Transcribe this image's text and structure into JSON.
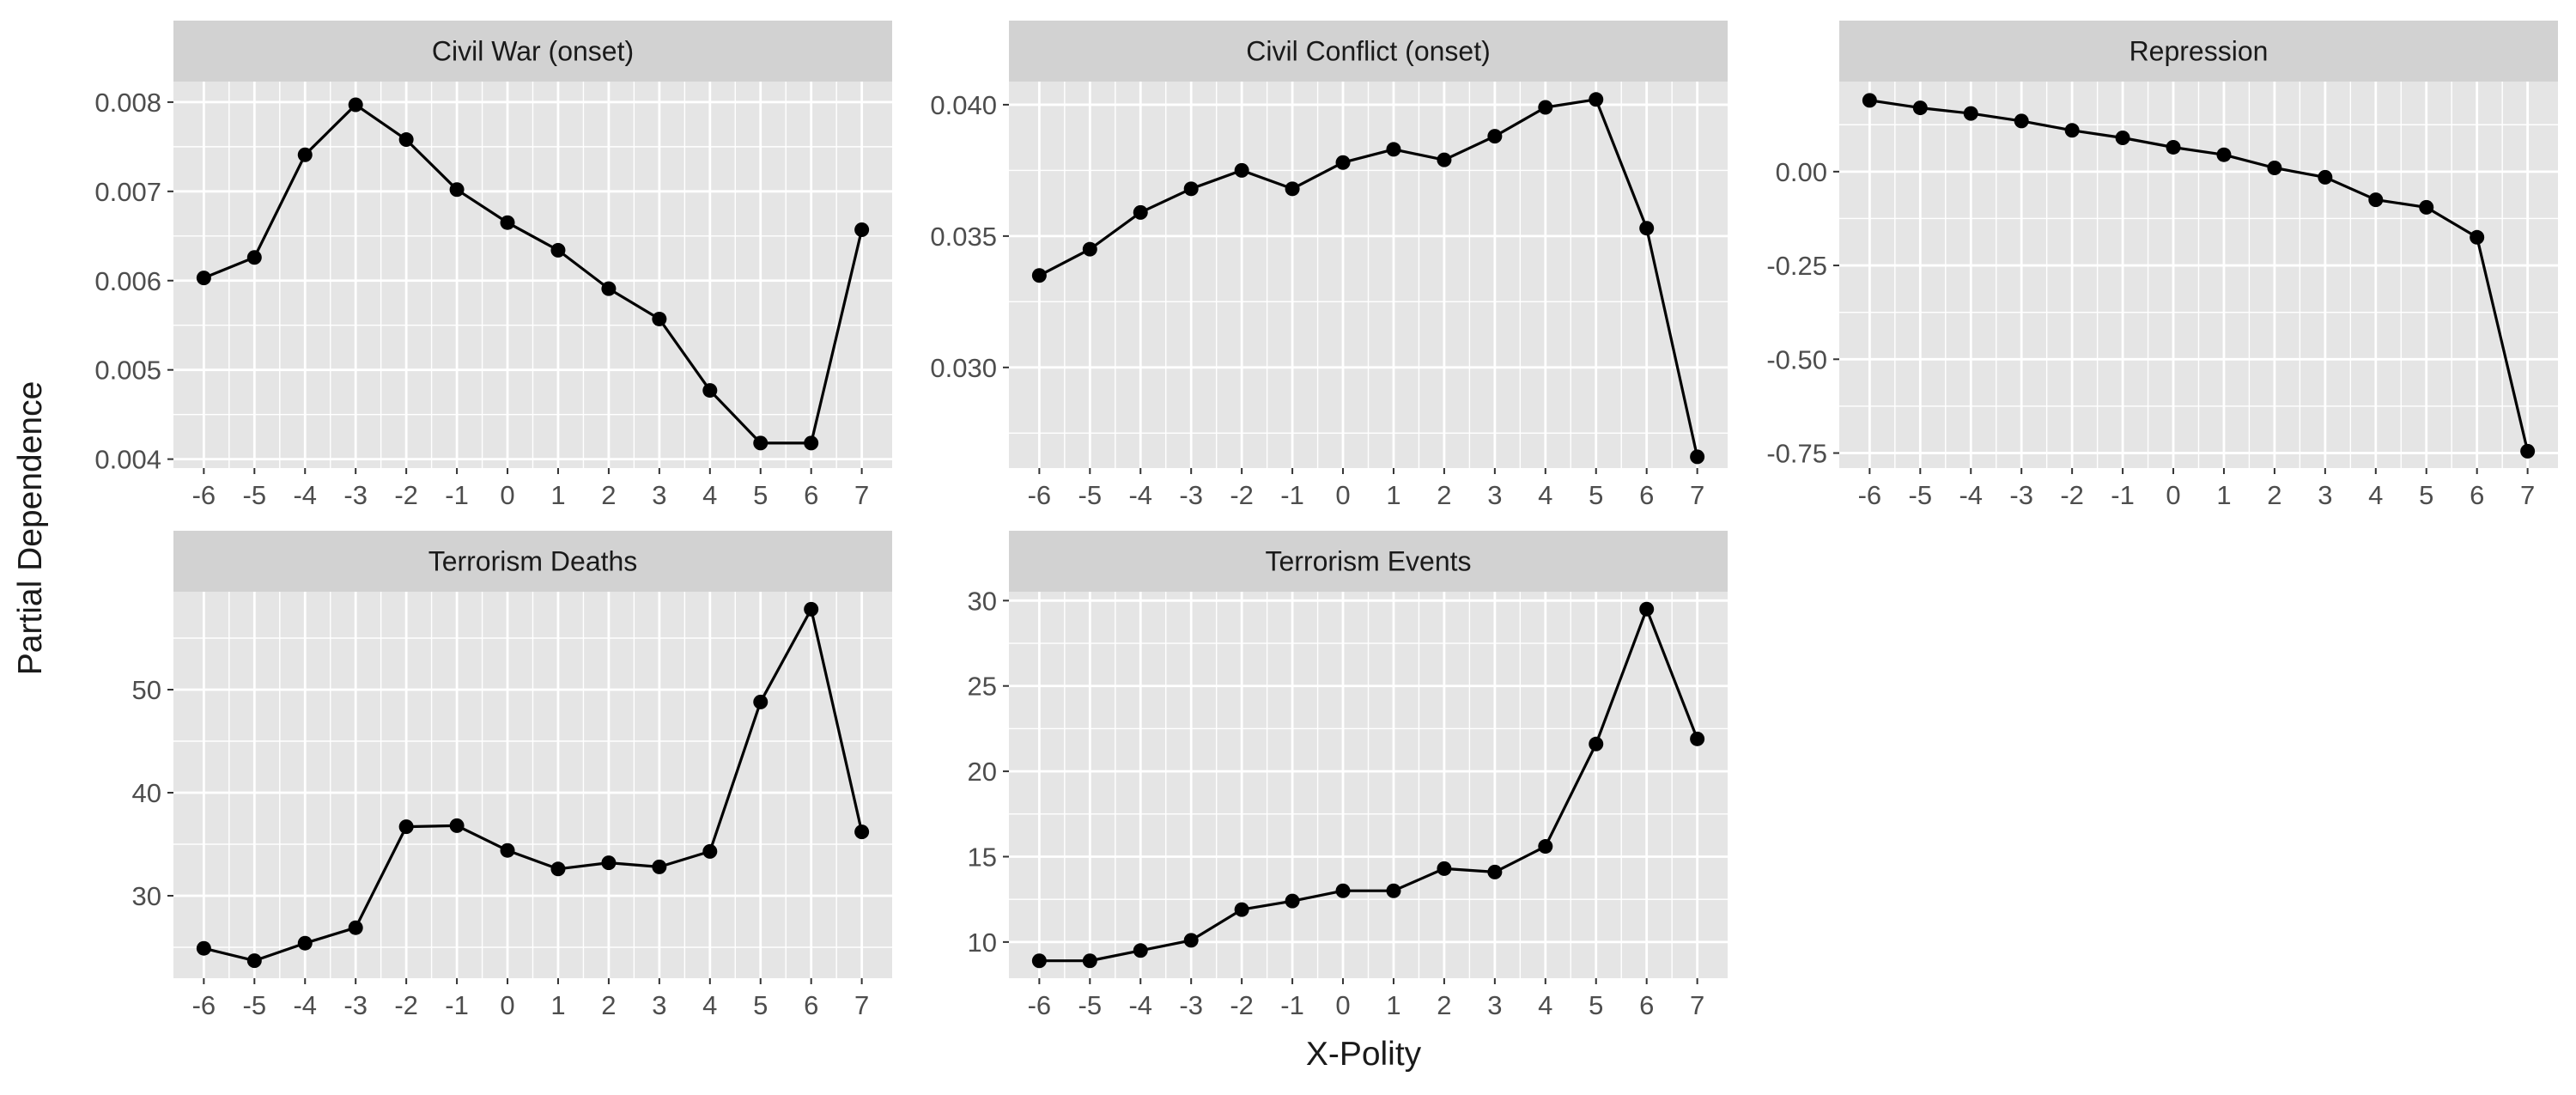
{
  "figure": {
    "ylabel": "Partial Dependence",
    "xlabel": "X-Polity"
  },
  "colors": {
    "panel_bg": "#E5E5E5",
    "strip_bg": "#D2D2D2",
    "grid": "#FFFFFF",
    "line": "#000000",
    "point": "#000000",
    "axis_text": "#4D4D4D",
    "title_text": "#1A1A1A"
  },
  "chart_data": [
    {
      "type": "line",
      "title": "Civil War (onset)",
      "x": [
        -6,
        -5,
        -4,
        -3,
        -2,
        -1,
        0,
        1,
        2,
        3,
        4,
        5,
        6,
        7
      ],
      "x_tick_labels": [
        "-6",
        "-5",
        "-4",
        "-3",
        "-2",
        "-1",
        "0",
        "1",
        "2",
        "3",
        "4",
        "5",
        "6",
        "7"
      ],
      "y": [
        0.00603,
        0.00626,
        0.00741,
        0.00797,
        0.00758,
        0.00702,
        0.00665,
        0.00634,
        0.00591,
        0.00557,
        0.00477,
        0.00418,
        0.00418,
        0.00657
      ],
      "ylim": [
        0.0039,
        0.00823
      ],
      "y_ticks": [
        0.004,
        0.005,
        0.006,
        0.007,
        0.008
      ],
      "y_tick_labels": [
        "0.004",
        "0.005",
        "0.006",
        "0.007",
        "0.008"
      ],
      "grid": true
    },
    {
      "type": "line",
      "title": "Civil Conflict (onset)",
      "x": [
        -6,
        -5,
        -4,
        -3,
        -2,
        -1,
        0,
        1,
        2,
        3,
        4,
        5,
        6,
        7
      ],
      "x_tick_labels": [
        "-6",
        "-5",
        "-4",
        "-3",
        "-2",
        "-1",
        "0",
        "1",
        "2",
        "3",
        "4",
        "5",
        "6",
        "7"
      ],
      "y": [
        0.0335,
        0.0345,
        0.0359,
        0.0368,
        0.0375,
        0.0368,
        0.0378,
        0.0383,
        0.0379,
        0.0388,
        0.0399,
        0.0402,
        0.0353,
        0.0266
      ],
      "ylim": [
        0.02617,
        0.04088
      ],
      "y_ticks": [
        0.03,
        0.035,
        0.04
      ],
      "y_tick_labels": [
        "0.030",
        "0.035",
        "0.040"
      ],
      "grid": true
    },
    {
      "type": "line",
      "title": "Repression",
      "x": [
        -6,
        -5,
        -4,
        -3,
        -2,
        -1,
        0,
        1,
        2,
        3,
        4,
        5,
        6,
        7
      ],
      "x_tick_labels": [
        "-6",
        "-5",
        "-4",
        "-3",
        "-2",
        "-1",
        "0",
        "1",
        "2",
        "3",
        "4",
        "5",
        "6",
        "7"
      ],
      "y": [
        0.19,
        0.17,
        0.155,
        0.135,
        0.11,
        0.09,
        0.065,
        0.045,
        0.01,
        -0.015,
        -0.075,
        -0.095,
        -0.175,
        -0.745
      ],
      "ylim": [
        -0.79,
        0.24
      ],
      "y_ticks": [
        -0.75,
        -0.5,
        -0.25,
        0.0
      ],
      "y_tick_labels": [
        "-0.75",
        "-0.50",
        "-0.25",
        "0.00"
      ],
      "grid": true
    },
    {
      "type": "line",
      "title": "Terrorism Deaths",
      "x": [
        -6,
        -5,
        -4,
        -3,
        -2,
        -1,
        0,
        1,
        2,
        3,
        4,
        5,
        6,
        7
      ],
      "x_tick_labels": [
        "-6",
        "-5",
        "-4",
        "-3",
        "-2",
        "-1",
        "0",
        "1",
        "2",
        "3",
        "4",
        "5",
        "6",
        "7"
      ],
      "y": [
        24.9,
        23.7,
        25.4,
        26.9,
        36.7,
        36.8,
        34.4,
        32.6,
        33.2,
        32.8,
        34.3,
        48.8,
        57.8,
        36.2
      ],
      "ylim": [
        22.0,
        59.5
      ],
      "y_ticks": [
        30,
        40,
        50
      ],
      "y_tick_labels": [
        "30",
        "40",
        "50"
      ],
      "grid": true
    },
    {
      "type": "line",
      "title": "Terrorism Events",
      "x": [
        -6,
        -5,
        -4,
        -3,
        -2,
        -1,
        0,
        1,
        2,
        3,
        4,
        5,
        6,
        7
      ],
      "x_tick_labels": [
        "-6",
        "-5",
        "-4",
        "-3",
        "-2",
        "-1",
        "0",
        "1",
        "2",
        "3",
        "4",
        "5",
        "6",
        "7"
      ],
      "y": [
        8.9,
        8.9,
        9.5,
        10.1,
        11.9,
        12.4,
        13.0,
        13.0,
        14.3,
        14.1,
        15.6,
        21.6,
        29.5,
        21.9
      ],
      "ylim": [
        7.88,
        30.52
      ],
      "y_ticks": [
        10,
        15,
        20,
        25,
        30
      ],
      "y_tick_labels": [
        "10",
        "15",
        "20",
        "25",
        "30"
      ],
      "grid": true
    }
  ]
}
